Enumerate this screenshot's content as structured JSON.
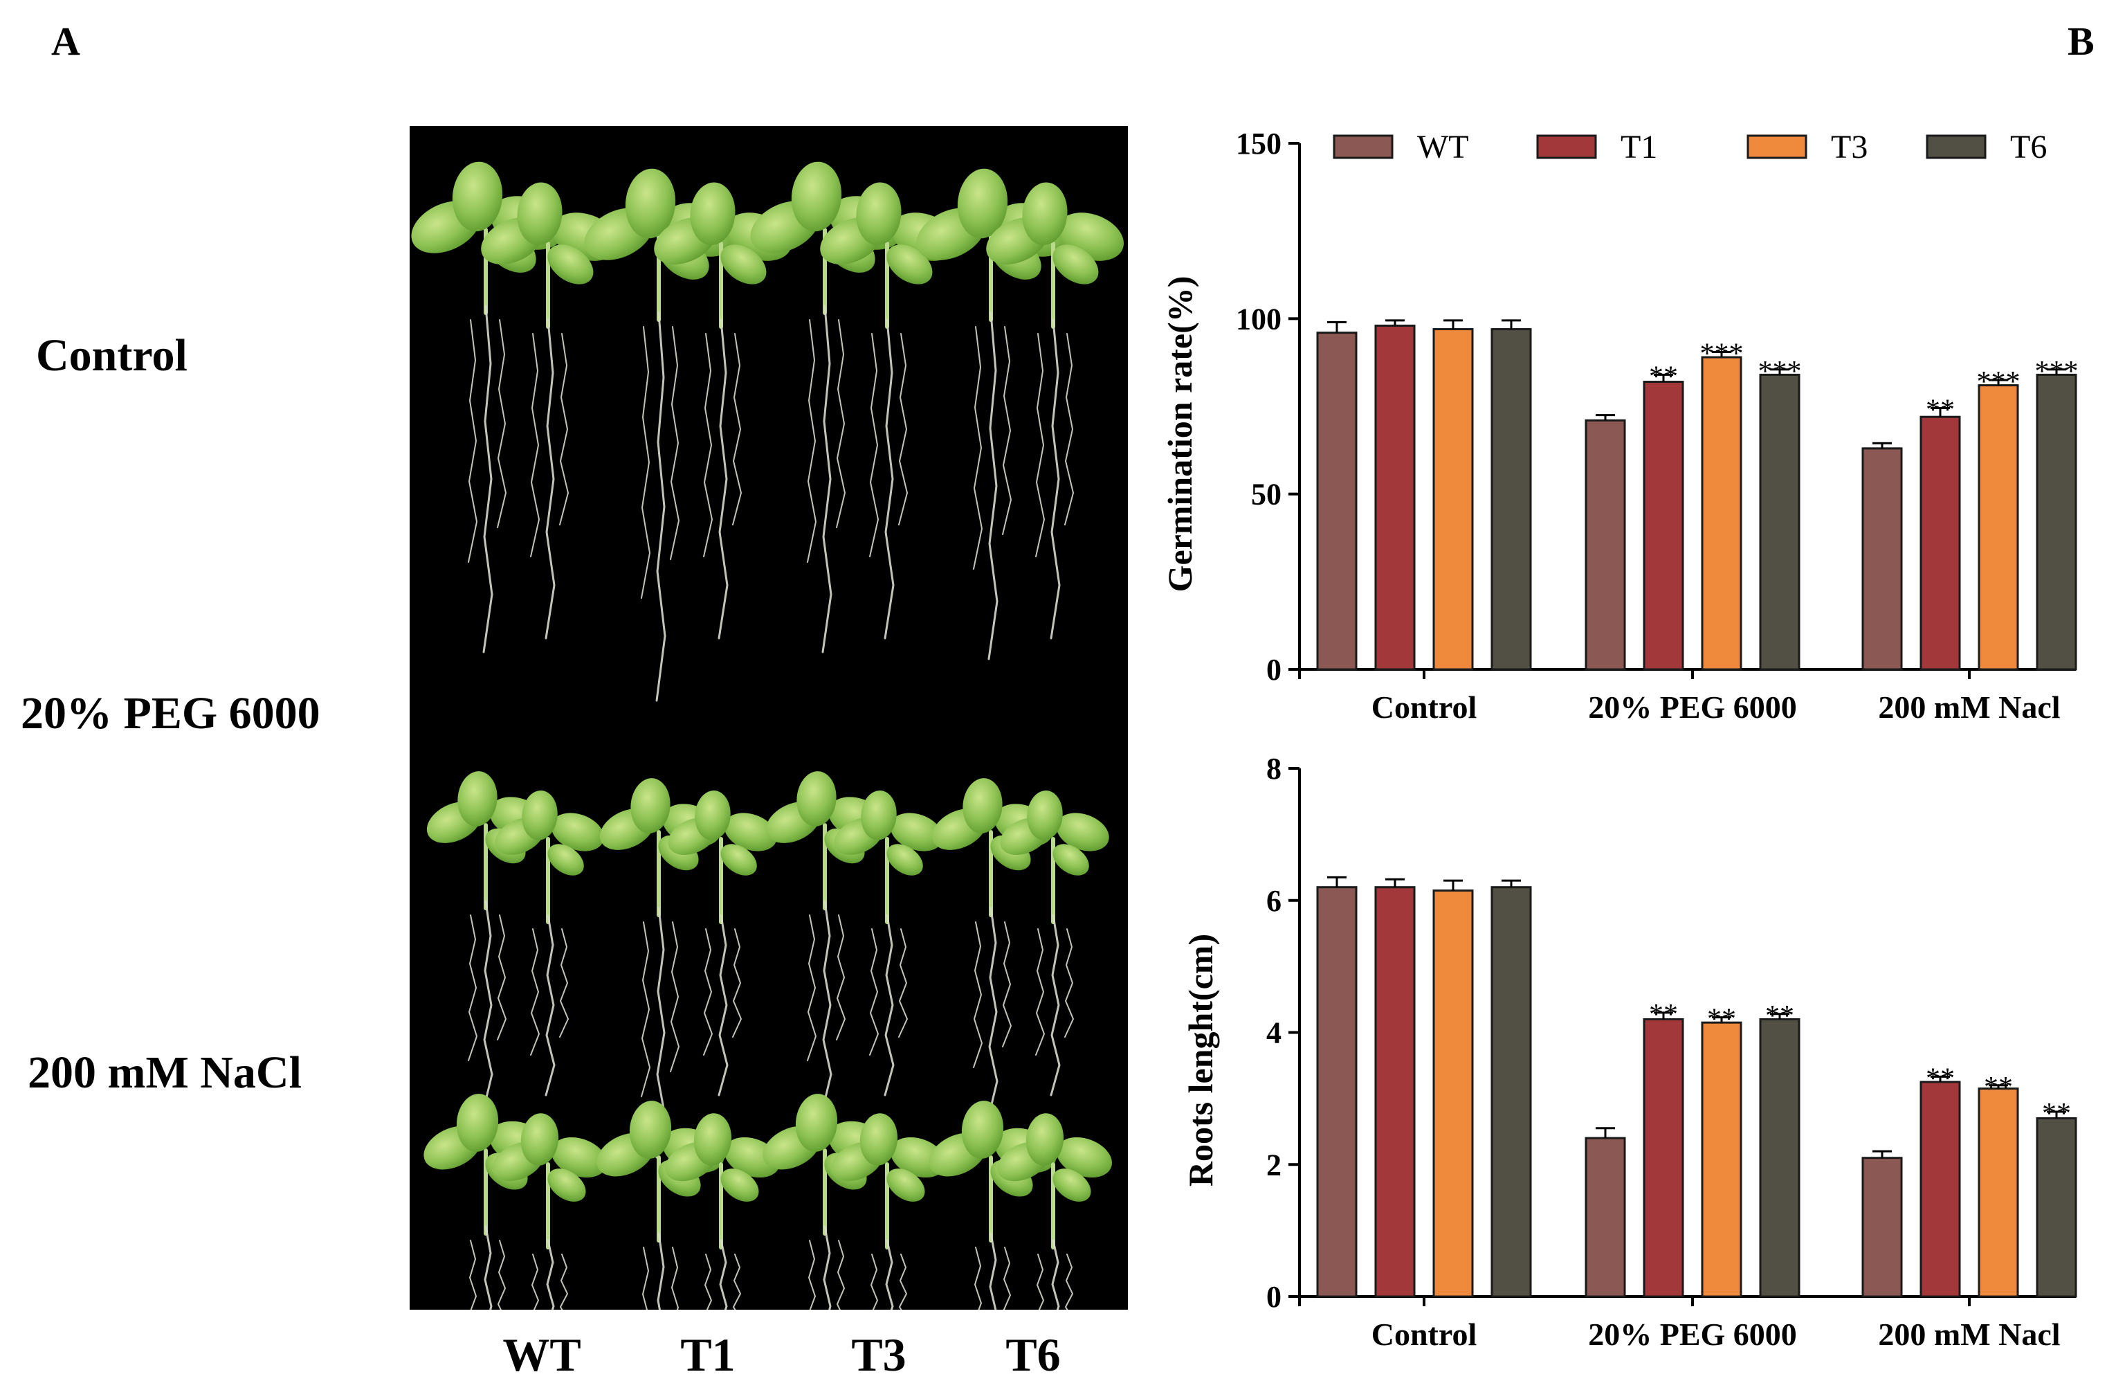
{
  "panel_a": {
    "letter": "A",
    "row_labels": [
      "Control",
      "20% PEG 6000",
      "200 mM NaCl"
    ],
    "col_labels": [
      "WT",
      "T1",
      "T3",
      "T6"
    ]
  },
  "panel_b": {
    "letter": "B"
  },
  "colors": {
    "WT": "#8b5853",
    "T1": "#a3383b",
    "T3": "#ef8a3d",
    "T6": "#525044"
  },
  "chart_data": [
    {
      "type": "bar",
      "title": "",
      "ylabel": "Germination rate(%)",
      "xlabel": "",
      "ylim": [
        0,
        150
      ],
      "yticks": [
        0,
        50,
        100,
        150
      ],
      "categories": [
        "Control",
        "20% PEG 6000",
        "200 mM Nacl"
      ],
      "legend": [
        "WT",
        "T1",
        "T3",
        "T6"
      ],
      "legend_position": "top",
      "series": [
        {
          "name": "WT",
          "values": [
            96,
            71,
            63
          ],
          "errors": [
            3,
            1.5,
            1.5
          ],
          "sig": [
            "",
            "",
            ""
          ]
        },
        {
          "name": "T1",
          "values": [
            98,
            82,
            72
          ],
          "errors": [
            1.5,
            2,
            2.5
          ],
          "sig": [
            "",
            "**",
            "**"
          ]
        },
        {
          "name": "T3",
          "values": [
            97,
            89,
            81
          ],
          "errors": [
            2.5,
            1.5,
            1.5
          ],
          "sig": [
            "",
            "***",
            "***"
          ]
        },
        {
          "name": "T6",
          "values": [
            97,
            84,
            84
          ],
          "errors": [
            2.5,
            1.5,
            1.5
          ],
          "sig": [
            "",
            "***",
            "***"
          ]
        }
      ]
    },
    {
      "type": "bar",
      "title": "",
      "ylabel": "Roots lenght(cm)",
      "xlabel": "",
      "ylim": [
        0,
        8
      ],
      "yticks": [
        0,
        2,
        4,
        6,
        8
      ],
      "categories": [
        "Control",
        "20% PEG 6000",
        "200 mM Nacl"
      ],
      "legend": [],
      "series": [
        {
          "name": "WT",
          "values": [
            6.2,
            2.4,
            2.1
          ],
          "errors": [
            0.15,
            0.15,
            0.1
          ],
          "sig": [
            "",
            "",
            ""
          ]
        },
        {
          "name": "T1",
          "values": [
            6.2,
            4.2,
            3.25
          ],
          "errors": [
            0.12,
            0.1,
            0.08
          ],
          "sig": [
            "",
            "**",
            "**"
          ]
        },
        {
          "name": "T3",
          "values": [
            6.15,
            4.15,
            3.15
          ],
          "errors": [
            0.15,
            0.08,
            0.05
          ],
          "sig": [
            "",
            "**",
            "**"
          ]
        },
        {
          "name": "T6",
          "values": [
            6.2,
            4.2,
            2.7
          ],
          "errors": [
            0.1,
            0.08,
            0.1
          ],
          "sig": [
            "",
            "**",
            "**"
          ]
        }
      ]
    }
  ]
}
